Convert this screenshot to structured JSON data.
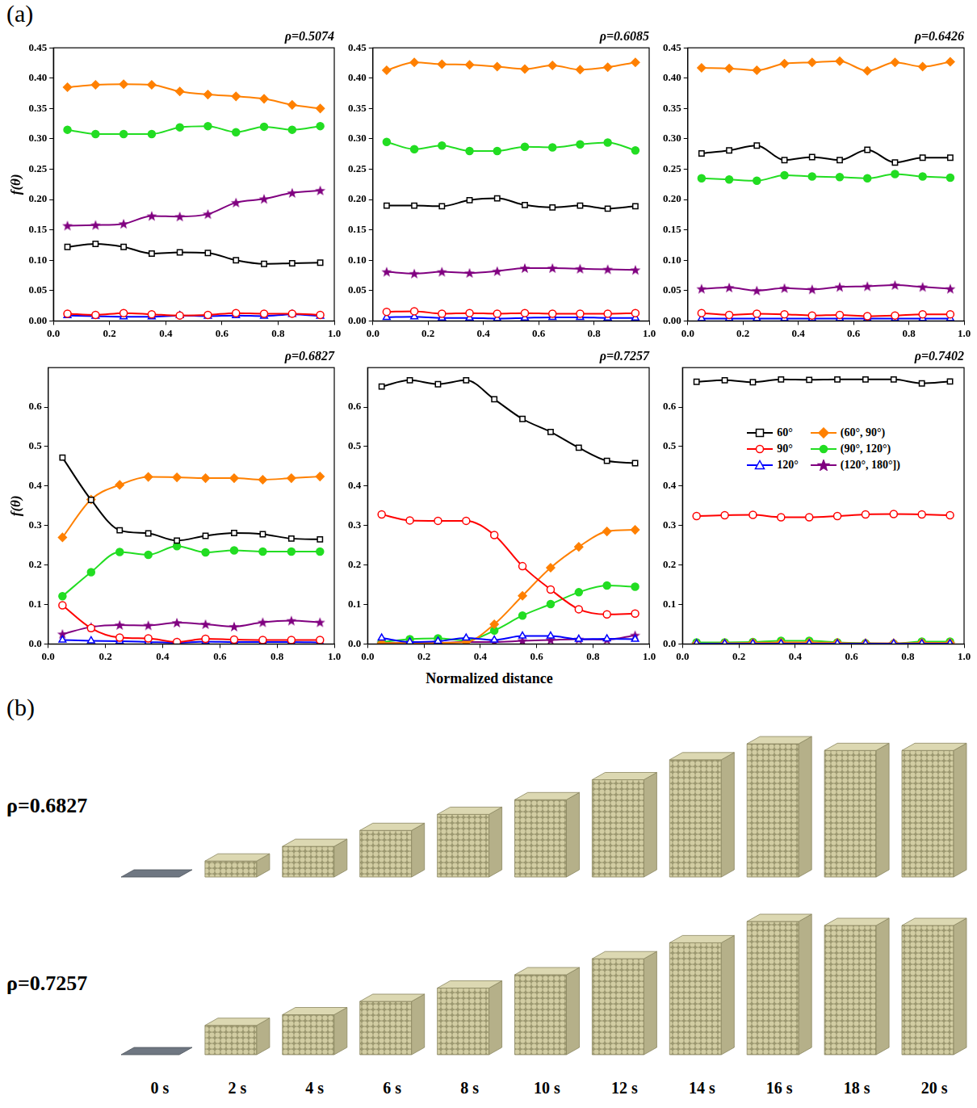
{
  "chart_data": [
    {
      "type": "line",
      "title": "ρ=0.5074",
      "y_label": "f(θ)",
      "grid": false,
      "x": [
        0.05,
        0.15,
        0.25,
        0.35,
        0.45,
        0.55,
        0.65,
        0.75,
        0.85,
        0.95
      ],
      "xlim": [
        0,
        1
      ],
      "xticks": [
        {
          "value": 0,
          "label": "0.0"
        },
        0.2,
        0.4,
        0.6,
        0.8,
        {
          "value": 1,
          "label": "1.0"
        }
      ],
      "ylim": [
        0,
        0.45
      ],
      "yticks": [
        {
          "value": 0,
          "label": "0.00"
        },
        0.05,
        {
          "value": 0.1,
          "label": "0.10"
        },
        0.15,
        {
          "value": 0.2,
          "label": "0.20"
        },
        0.25,
        {
          "value": 0.3,
          "label": "0.30"
        },
        0.35,
        {
          "value": 0.4,
          "label": "0.40"
        },
        0.45
      ],
      "series": [
        {
          "name": "60°",
          "color": "#000000",
          "marker": "open_square",
          "values": [
            0.122,
            0.127,
            0.122,
            0.111,
            0.113,
            0.112,
            0.1,
            0.094,
            0.095,
            0.096
          ]
        },
        {
          "name": "90°",
          "color": "#ff0000",
          "marker": "open_circle",
          "values": [
            0.012,
            0.01,
            0.013,
            0.011,
            0.009,
            0.01,
            0.013,
            0.012,
            0.012,
            0.01
          ]
        },
        {
          "name": "120°",
          "color": "#0000ff",
          "marker": "open_triangle",
          "values": [
            0.009,
            0.008,
            0.007,
            0.007,
            0.009,
            0.008,
            0.009,
            0.008,
            0.011,
            0.008
          ]
        },
        {
          "name": "(60°, 90°)",
          "color": "#ff8000",
          "marker": "diamond",
          "values": [
            0.385,
            0.389,
            0.39,
            0.389,
            0.378,
            0.373,
            0.37,
            0.366,
            0.356,
            0.35
          ]
        },
        {
          "name": "(90°, 120°)",
          "color": "#22dd22",
          "marker": "circle",
          "values": [
            0.315,
            0.308,
            0.308,
            0.308,
            0.319,
            0.321,
            0.311,
            0.32,
            0.315,
            0.321
          ]
        },
        {
          "name": "(120°, 180°])",
          "color": "#800080",
          "marker": "star",
          "values": [
            0.157,
            0.158,
            0.16,
            0.173,
            0.172,
            0.176,
            0.195,
            0.201,
            0.211,
            0.215
          ]
        }
      ]
    },
    {
      "type": "line",
      "title": "ρ=0.6085",
      "grid": false,
      "x": [
        0.05,
        0.15,
        0.25,
        0.35,
        0.45,
        0.55,
        0.65,
        0.75,
        0.85,
        0.95
      ],
      "xlim": [
        0,
        1
      ],
      "xticks": [
        {
          "value": 0,
          "label": "0.0"
        },
        0.2,
        0.4,
        0.6,
        0.8,
        {
          "value": 1,
          "label": "1.0"
        }
      ],
      "ylim": [
        0,
        0.45
      ],
      "yticks": [
        {
          "value": 0,
          "label": "0.00"
        },
        0.05,
        {
          "value": 0.1,
          "label": "0.10"
        },
        0.15,
        {
          "value": 0.2,
          "label": "0.20"
        },
        0.25,
        {
          "value": 0.3,
          "label": "0.30"
        },
        0.35,
        {
          "value": 0.4,
          "label": "0.40"
        },
        0.45
      ],
      "series": [
        {
          "name": "60°",
          "color": "#000000",
          "marker": "open_square",
          "values": [
            0.19,
            0.19,
            0.189,
            0.199,
            0.202,
            0.191,
            0.187,
            0.19,
            0.185,
            0.189
          ]
        },
        {
          "name": "90°",
          "color": "#ff0000",
          "marker": "open_circle",
          "values": [
            0.015,
            0.016,
            0.012,
            0.013,
            0.012,
            0.013,
            0.012,
            0.012,
            0.012,
            0.013
          ]
        },
        {
          "name": "120°",
          "color": "#0000ff",
          "marker": "open_triangle",
          "values": [
            0.006,
            0.007,
            0.005,
            0.005,
            0.004,
            0.005,
            0.006,
            0.006,
            0.005,
            0.005
          ]
        },
        {
          "name": "(60°, 90°)",
          "color": "#ff8000",
          "marker": "diamond",
          "values": [
            0.413,
            0.426,
            0.423,
            0.422,
            0.419,
            0.415,
            0.421,
            0.414,
            0.418,
            0.426
          ]
        },
        {
          "name": "(90°, 120°)",
          "color": "#22dd22",
          "marker": "circle",
          "values": [
            0.295,
            0.283,
            0.289,
            0.28,
            0.28,
            0.287,
            0.286,
            0.291,
            0.294,
            0.281
          ]
        },
        {
          "name": "(120°, 180°])",
          "color": "#800080",
          "marker": "star",
          "values": [
            0.081,
            0.078,
            0.081,
            0.079,
            0.082,
            0.087,
            0.087,
            0.086,
            0.085,
            0.084
          ]
        }
      ]
    },
    {
      "type": "line",
      "title": "ρ=0.6426",
      "grid": false,
      "x": [
        0.05,
        0.15,
        0.25,
        0.35,
        0.45,
        0.55,
        0.65,
        0.75,
        0.85,
        0.95
      ],
      "xlim": [
        0,
        1
      ],
      "xticks": [
        {
          "value": 0,
          "label": "0.0"
        },
        0.2,
        0.4,
        0.6,
        0.8,
        {
          "value": 1,
          "label": "1.0"
        }
      ],
      "ylim": [
        0,
        0.45
      ],
      "yticks": [
        {
          "value": 0,
          "label": "0.00"
        },
        0.05,
        {
          "value": 0.1,
          "label": "0.10"
        },
        0.15,
        {
          "value": 0.2,
          "label": "0.20"
        },
        0.25,
        {
          "value": 0.3,
          "label": "0.30"
        },
        0.35,
        {
          "value": 0.4,
          "label": "0.40"
        },
        0.45
      ],
      "series": [
        {
          "name": "60°",
          "color": "#000000",
          "marker": "open_square",
          "values": [
            0.276,
            0.281,
            0.289,
            0.265,
            0.27,
            0.265,
            0.282,
            0.261,
            0.269,
            0.269
          ]
        },
        {
          "name": "90°",
          "color": "#ff0000",
          "marker": "open_circle",
          "values": [
            0.013,
            0.01,
            0.012,
            0.011,
            0.009,
            0.01,
            0.008,
            0.009,
            0.011,
            0.011
          ]
        },
        {
          "name": "120°",
          "color": "#0000ff",
          "marker": "open_triangle",
          "values": [
            0.004,
            0.004,
            0.004,
            0.004,
            0.004,
            0.004,
            0.004,
            0.004,
            0.004,
            0.004
          ]
        },
        {
          "name": "(60°, 90°)",
          "color": "#ff8000",
          "marker": "diamond",
          "values": [
            0.417,
            0.416,
            0.413,
            0.424,
            0.426,
            0.428,
            0.412,
            0.426,
            0.419,
            0.427
          ]
        },
        {
          "name": "(90°, 120°)",
          "color": "#22dd22",
          "marker": "circle",
          "values": [
            0.235,
            0.233,
            0.231,
            0.24,
            0.238,
            0.237,
            0.235,
            0.242,
            0.238,
            0.236
          ]
        },
        {
          "name": "(120°, 180°])",
          "color": "#800080",
          "marker": "star",
          "values": [
            0.053,
            0.055,
            0.05,
            0.054,
            0.052,
            0.056,
            0.057,
            0.059,
            0.056,
            0.053
          ]
        }
      ]
    },
    {
      "type": "line",
      "title": "ρ=0.6827",
      "y_label": "f(θ)",
      "grid": false,
      "x": [
        0.05,
        0.15,
        0.25,
        0.35,
        0.45,
        0.55,
        0.65,
        0.75,
        0.85,
        0.95
      ],
      "xlim": [
        0,
        1
      ],
      "xticks": [
        {
          "value": 0,
          "label": "0.0"
        },
        0.2,
        0.4,
        0.6,
        0.8,
        {
          "value": 1,
          "label": "1.0"
        }
      ],
      "ylim": [
        0,
        0.7
      ],
      "yticks": [
        {
          "value": 0,
          "label": "0.0"
        },
        0.1,
        0.2,
        0.3,
        0.4,
        0.5,
        0.6
      ],
      "series": [
        {
          "name": "60°",
          "color": "#000000",
          "marker": "open_square",
          "values": [
            0.472,
            0.365,
            0.288,
            0.28,
            0.262,
            0.274,
            0.281,
            0.278,
            0.267,
            0.265
          ]
        },
        {
          "name": "90°",
          "color": "#ff0000",
          "marker": "open_circle",
          "values": [
            0.098,
            0.04,
            0.016,
            0.014,
            0.005,
            0.013,
            0.011,
            0.01,
            0.01,
            0.01
          ]
        },
        {
          "name": "120°",
          "color": "#0000ff",
          "marker": "open_triangle",
          "values": [
            0.01,
            0.008,
            0.007,
            0.005,
            0.003,
            0.006,
            0.005,
            0.005,
            0.005,
            0.004
          ]
        },
        {
          "name": "(60°, 90°)",
          "color": "#ff8000",
          "marker": "diamond",
          "values": [
            0.27,
            0.366,
            0.403,
            0.423,
            0.422,
            0.42,
            0.42,
            0.416,
            0.42,
            0.424
          ]
        },
        {
          "name": "(90°, 120°)",
          "color": "#22dd22",
          "marker": "circle",
          "values": [
            0.121,
            0.182,
            0.233,
            0.226,
            0.248,
            0.232,
            0.237,
            0.234,
            0.234,
            0.234
          ]
        },
        {
          "name": "(120°, 180°])",
          "color": "#800080",
          "marker": "star",
          "values": [
            0.025,
            0.043,
            0.048,
            0.047,
            0.054,
            0.05,
            0.044,
            0.055,
            0.059,
            0.055
          ]
        }
      ]
    },
    {
      "type": "line",
      "title": "ρ=0.7257",
      "grid": false,
      "x": [
        0.05,
        0.15,
        0.25,
        0.35,
        0.45,
        0.55,
        0.65,
        0.75,
        0.85,
        0.95
      ],
      "xlim": [
        0,
        1
      ],
      "xticks": [
        {
          "value": 0,
          "label": "0.0"
        },
        0.2,
        0.4,
        0.6,
        0.8,
        {
          "value": 1,
          "label": "1.0"
        }
      ],
      "ylim": [
        0,
        0.7
      ],
      "yticks": [
        {
          "value": 0,
          "label": "0.0"
        },
        0.1,
        0.2,
        0.3,
        0.4,
        0.5,
        0.6
      ],
      "series": [
        {
          "name": "60°",
          "color": "#000000",
          "marker": "open_square",
          "values": [
            0.652,
            0.668,
            0.658,
            0.668,
            0.62,
            0.57,
            0.537,
            0.497,
            0.464,
            0.458
          ]
        },
        {
          "name": "90°",
          "color": "#ff0000",
          "marker": "open_circle",
          "values": [
            0.328,
            0.313,
            0.312,
            0.312,
            0.276,
            0.197,
            0.138,
            0.088,
            0.075,
            0.077
          ]
        },
        {
          "name": "120°",
          "color": "#0000ff",
          "marker": "open_triangle",
          "values": [
            0.015,
            0.005,
            0.007,
            0.015,
            0.01,
            0.02,
            0.02,
            0.012,
            0.013,
            0.012
          ]
        },
        {
          "name": "(60°, 90°)",
          "color": "#ff8000",
          "marker": "diamond",
          "values": [
            0.002,
            0.003,
            0.003,
            0.005,
            0.05,
            0.122,
            0.193,
            0.246,
            0.285,
            0.289
          ]
        },
        {
          "name": "(90°, 120°)",
          "color": "#22dd22",
          "marker": "circle",
          "values": [
            0.005,
            0.012,
            0.014,
            0.009,
            0.034,
            0.072,
            0.101,
            0.131,
            0.148,
            0.145
          ]
        },
        {
          "name": "(120°, 180°])",
          "color": "#800080",
          "marker": "star",
          "values": [
            0.002,
            0.003,
            0.003,
            0.005,
            0.005,
            0.008,
            0.01,
            0.012,
            0.011,
            0.022
          ]
        }
      ]
    },
    {
      "type": "line",
      "title": "ρ=0.7402",
      "grid": false,
      "legend": "center",
      "x": [
        0.05,
        0.15,
        0.25,
        0.35,
        0.45,
        0.55,
        0.65,
        0.75,
        0.85,
        0.95
      ],
      "xlim": [
        0,
        1
      ],
      "xticks": [
        {
          "value": 0,
          "label": "0.0"
        },
        0.2,
        0.4,
        0.6,
        0.8,
        {
          "value": 1,
          "label": "1.0"
        }
      ],
      "ylim": [
        0,
        0.7
      ],
      "yticks": [
        {
          "value": 0,
          "label": "0.0"
        },
        0.1,
        0.2,
        0.3,
        0.4,
        0.5,
        0.6
      ],
      "series": [
        {
          "name": "60°",
          "color": "#000000",
          "marker": "open_square",
          "values": [
            0.664,
            0.668,
            0.663,
            0.67,
            0.669,
            0.67,
            0.67,
            0.67,
            0.66,
            0.665
          ]
        },
        {
          "name": "90°",
          "color": "#ff0000",
          "marker": "open_circle",
          "values": [
            0.324,
            0.326,
            0.327,
            0.321,
            0.321,
            0.324,
            0.328,
            0.329,
            0.328,
            0.326
          ]
        },
        {
          "name": "120°",
          "color": "#0000ff",
          "marker": "open_triangle",
          "values": [
            0.001,
            0.001,
            0.001,
            0.001,
            0.001,
            0.001,
            0.001,
            0.001,
            0.001,
            0.001
          ]
        },
        {
          "name": "(60°, 90°)",
          "color": "#ff8000",
          "marker": "diamond",
          "values": [
            0.001,
            0.002,
            0.003,
            0.004,
            0.004,
            0.003,
            0.002,
            0.002,
            0.003,
            0.003
          ]
        },
        {
          "name": "(90°, 120°)",
          "color": "#22dd22",
          "marker": "circle",
          "values": [
            0.004,
            0.004,
            0.005,
            0.008,
            0.008,
            0.004,
            0.002,
            0.001,
            0.006,
            0.006
          ]
        },
        {
          "name": "(120°, 180°])",
          "color": "#800080",
          "marker": "star",
          "values": [
            0.001,
            0.001,
            0.001,
            0.001,
            0.001,
            0.001,
            0.001,
            0.001,
            0.001,
            0.001
          ]
        }
      ]
    }
  ],
  "figure": {
    "panel_a_label": "(a)",
    "x_label": "Normalized distance",
    "panel_b": {
      "label": "(b)",
      "times": [
        "0 s",
        "2 s",
        "4 s",
        "6 s",
        "8 s",
        "10 s",
        "12 s",
        "14 s",
        "16 s",
        "18 s",
        "20 s"
      ],
      "rows": [
        {
          "label": "ρ=0.6827",
          "pile_height": [
            0,
            0.12,
            0.23,
            0.35,
            0.47,
            0.58,
            0.73,
            0.88,
            1.0,
            0.95,
            0.95
          ]
        },
        {
          "label": "ρ=0.7257",
          "pile_height": [
            0,
            0.22,
            0.3,
            0.4,
            0.5,
            0.6,
            0.72,
            0.84,
            1.0,
            0.97,
            0.97
          ]
        }
      ]
    }
  }
}
